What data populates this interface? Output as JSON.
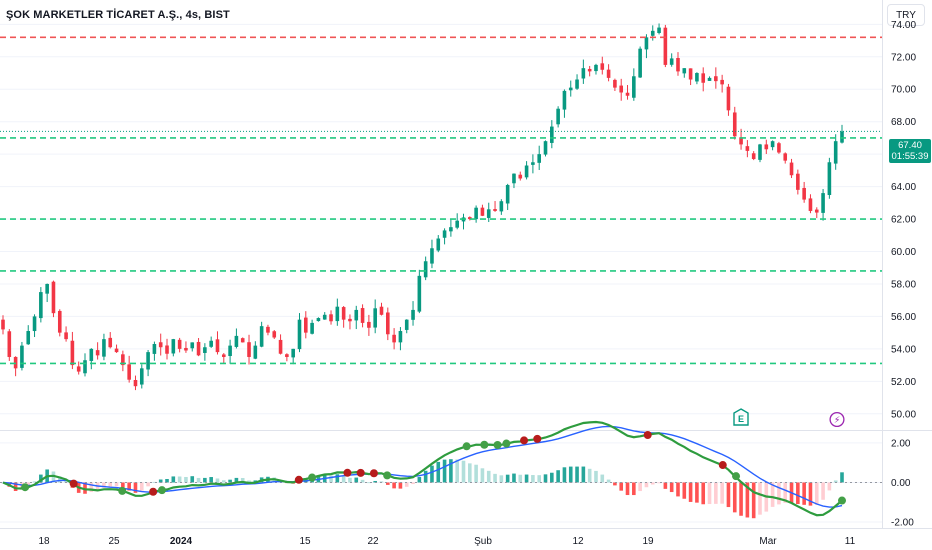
{
  "title": "ŞOK MARKETLER TİCARET A.Ş., 4s, BIST",
  "currency": "TRY",
  "last_price": "67.40",
  "countdown": "01:55:39",
  "colors": {
    "up": "#089981",
    "down": "#f23645",
    "grid": "#f0f3fa",
    "support": "#22c980",
    "resistance": "#f05555",
    "macd": "#2962ff",
    "signal": "#2e9c3e",
    "signal_down": "#b71c1c"
  },
  "chart_data": {
    "type": "candlestick",
    "price_axis": {
      "ticks": [
        "74.00",
        "72.00",
        "70.00",
        "68.00",
        "66.00",
        "64.00",
        "62.00",
        "60.00",
        "58.00",
        "56.00",
        "54.00",
        "52.00",
        "50.00"
      ],
      "ylim": [
        49.0,
        75.5
      ]
    },
    "indicator_axis": {
      "ticks": [
        "2.00",
        "0.00",
        "-2.00"
      ],
      "ylim": [
        -2.3,
        2.6
      ]
    },
    "x_labels": [
      "18",
      "25",
      "2024",
      "15",
      "22",
      "Şub",
      "12",
      "19",
      "Mar",
      "11"
    ],
    "horizontal_levels": [
      {
        "price": 73.2,
        "style": "resistance"
      },
      {
        "price": 67.0,
        "style": "support"
      },
      {
        "price": 62.0,
        "style": "support"
      },
      {
        "price": 58.8,
        "style": "support"
      },
      {
        "price": 53.1,
        "style": "support"
      }
    ],
    "close_prices": [
      55.2,
      53.5,
      52.8,
      54.2,
      55.1,
      56.0,
      57.5,
      58.0,
      56.2,
      55.0,
      54.6,
      53.0,
      52.6,
      53.3,
      54.0,
      53.6,
      54.6,
      54.1,
      53.8,
      53.0,
      52.1,
      51.7,
      52.8,
      53.8,
      54.3,
      54.1,
      53.7,
      54.6,
      54.0,
      53.9,
      54.4,
      53.6,
      54.1,
      54.5,
      53.8,
      53.5,
      54.2,
      54.8,
      54.4,
      53.5,
      54.2,
      55.4,
      55.0,
      54.7,
      53.7,
      53.5,
      54.0,
      55.8,
      55.0,
      55.6,
      55.9,
      56.1,
      55.7,
      56.6,
      55.8,
      55.7,
      56.4,
      55.6,
      55.3,
      56.5,
      56.1,
      54.9,
      54.4,
      55.1,
      55.8,
      56.4,
      58.5,
      59.4,
      60.2,
      60.8,
      61.3,
      61.5,
      61.9,
      62.1,
      62.0,
      62.7,
      62.2,
      62.6,
      62.5,
      63.1,
      64.1,
      64.8,
      64.5,
      65.3,
      65.5,
      66.0,
      66.8,
      67.7,
      68.8,
      69.9,
      70.1,
      70.6,
      71.3,
      71.1,
      71.5,
      71.2,
      70.7,
      70.1,
      69.8,
      69.6,
      70.8,
      72.5,
      73.2,
      73.6,
      73.8,
      71.5,
      71.9,
      71.1,
      71.3,
      70.6,
      71.0,
      70.4,
      70.7,
      70.5,
      70.3,
      68.7,
      67.1,
      66.6,
      66.2,
      65.7,
      66.6,
      66.3,
      66.8,
      66.1,
      65.6,
      64.7,
      63.8,
      63.2,
      62.5,
      62.4,
      63.6,
      65.5,
      66.8,
      67.4
    ],
    "macd_markers": [
      {
        "index": 5,
        "type": "cross_up"
      },
      {
        "index": 16,
        "type": "cross_down"
      },
      {
        "index": 27,
        "type": "cross_up"
      },
      {
        "index": 34,
        "type": "cross_down"
      },
      {
        "index": 36,
        "type": "cross_up"
      },
      {
        "index": 67,
        "type": "cross_down"
      },
      {
        "index": 70,
        "type": "cross_up"
      },
      {
        "index": 78,
        "type": "cross_down"
      },
      {
        "index": 81,
        "type": "cross_down"
      },
      {
        "index": 84,
        "type": "cross_down"
      },
      {
        "index": 87,
        "type": "cross_up"
      },
      {
        "index": 105,
        "type": "cross_up"
      },
      {
        "index": 109,
        "type": "cross_up"
      },
      {
        "index": 112,
        "type": "cross_up"
      },
      {
        "index": 114,
        "type": "cross_up"
      },
      {
        "index": 118,
        "type": "cross_down"
      },
      {
        "index": 121,
        "type": "cross_down"
      },
      {
        "index": 146,
        "type": "cross_down"
      },
      {
        "index": 163,
        "type": "cross_down"
      },
      {
        "index": 166,
        "type": "cross_up"
      },
      {
        "index": 190,
        "type": "cross_up"
      }
    ]
  },
  "events": {
    "earnings": "E",
    "dividend": "⚡"
  }
}
